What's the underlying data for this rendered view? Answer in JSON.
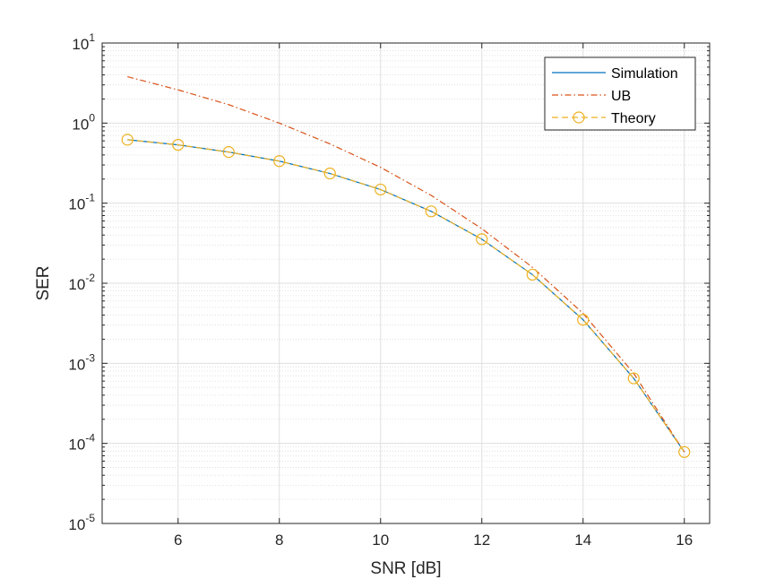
{
  "chart_data": {
    "type": "line",
    "title": "",
    "xlabel": "SNR [dB]",
    "ylabel": "SER",
    "xlim": [
      4.5,
      16.5
    ],
    "ylim": [
      1e-05,
      10
    ],
    "yscale": "log",
    "xticks": [
      6,
      8,
      10,
      12,
      14,
      16
    ],
    "yticks": [
      {
        "base": "10",
        "exp": "1",
        "value": 10
      },
      {
        "base": "10",
        "exp": "0",
        "value": 1
      },
      {
        "base": "10",
        "exp": "-1",
        "value": 0.1
      },
      {
        "base": "10",
        "exp": "-2",
        "value": 0.01
      },
      {
        "base": "10",
        "exp": "-3",
        "value": 0.001
      },
      {
        "base": "10",
        "exp": "-4",
        "value": 0.0001
      },
      {
        "base": "10",
        "exp": "-5",
        "value": 1e-05
      }
    ],
    "grid": true,
    "legend_position": "top-right",
    "x": [
      5,
      6,
      7,
      8,
      9,
      10,
      11,
      12,
      13,
      14,
      15,
      16
    ],
    "series": [
      {
        "name": "Simulation",
        "color": "#0072BD",
        "style": "solid",
        "marker": "none",
        "values": [
          0.62,
          0.535,
          0.435,
          0.335,
          0.235,
          0.148,
          0.079,
          0.0355,
          0.0128,
          0.0035,
          0.00065,
          7.8e-05
        ]
      },
      {
        "name": "UB",
        "color": "#D95319",
        "style": "dashdot",
        "marker": "none",
        "values": [
          3.8,
          2.6,
          1.7,
          1.0,
          0.55,
          0.28,
          0.125,
          0.048,
          0.0158,
          0.0042,
          0.00075,
          7.8e-05
        ]
      },
      {
        "name": "Theory",
        "color": "#EDB120",
        "style": "dashed",
        "marker": "circle",
        "values": [
          0.62,
          0.535,
          0.435,
          0.335,
          0.235,
          0.148,
          0.079,
          0.0355,
          0.0128,
          0.0035,
          0.00065,
          7.8e-05
        ]
      }
    ]
  }
}
